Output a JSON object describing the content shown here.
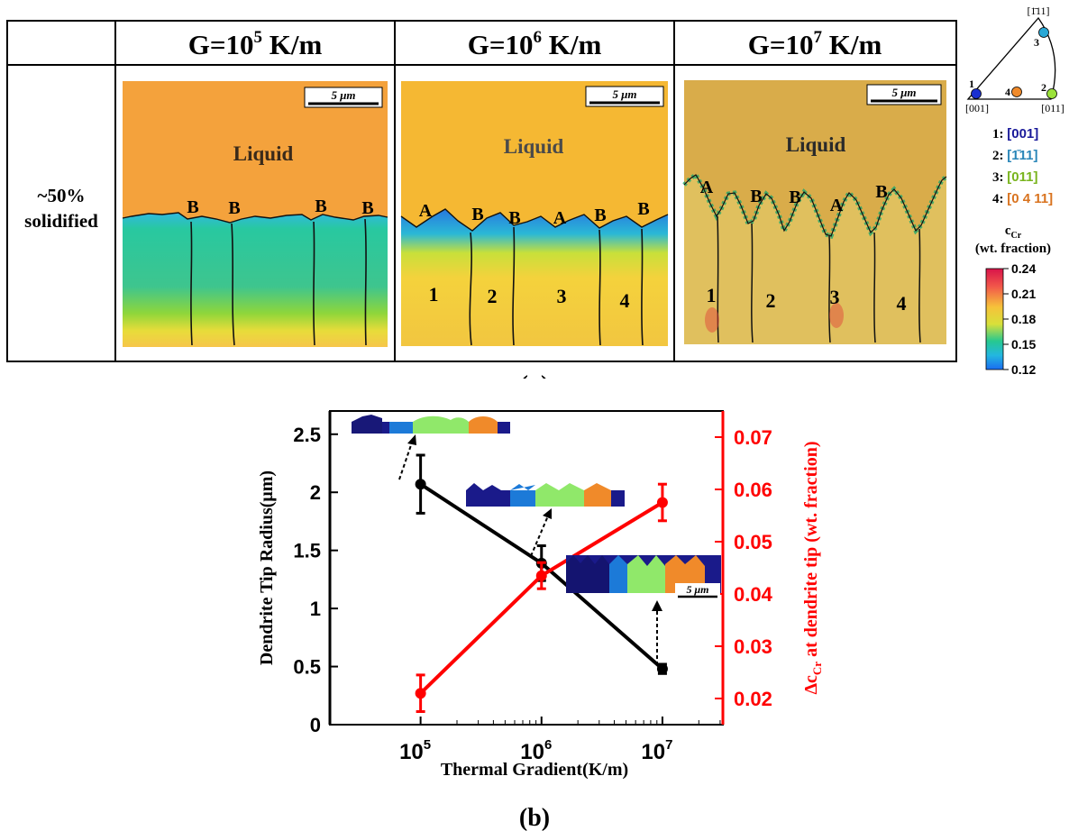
{
  "panel_a": {
    "label": "(a)",
    "columns": [
      {
        "prefix": "G=10",
        "exp": "5",
        "suffix": " K/m"
      },
      {
        "prefix": "G=10",
        "exp": "6",
        "suffix": " K/m"
      },
      {
        "prefix": "G=10",
        "exp": "7",
        "suffix": " K/m"
      }
    ],
    "row_label_line1": "~50%",
    "row_label_line2": "solidified",
    "scale_bar": "5 μm",
    "liquid_label": "Liquid",
    "tip_labels": [
      [
        "B",
        "B",
        "B",
        "B"
      ],
      [
        "A",
        "B",
        "B",
        "A",
        "B",
        "B"
      ],
      [
        "A",
        "B",
        "B",
        "A",
        "B"
      ]
    ],
    "grain_numbers": [
      [],
      [
        "1",
        "2",
        "3",
        "4"
      ],
      [
        "1",
        "2",
        "3",
        "4"
      ]
    ],
    "pole_figure": {
      "top": "[1̄11]",
      "bottom_left": "[001]",
      "bottom_right": "[011]",
      "point_numbers": [
        "1",
        "2",
        "3",
        "4"
      ],
      "colors": [
        "#1a2fd0",
        "#9be23a",
        "#29a8d6",
        "#f08a2a"
      ]
    },
    "orientation_legend": [
      {
        "num": "1:",
        "dir": "[001]",
        "color": "#1a1a9a"
      },
      {
        "num": "2:",
        "dir": "[1̄11]",
        "color": "#2a86b8"
      },
      {
        "num": "3:",
        "dir": "[011]",
        "color": "#79b41e"
      },
      {
        "num": "4:",
        "dir": "[0 4 11]",
        "color": "#d9731f"
      }
    ],
    "colorbar": {
      "title_main": "c",
      "title_sub": "Cr",
      "title_line2": "(wt. fraction)",
      "ticks": [
        "0.24",
        "0.21",
        "0.18",
        "0.15",
        "0.12"
      ]
    }
  },
  "panel_b": {
    "label": "(b)",
    "inset_scale": "5 μm"
  },
  "chart_data": {
    "type": "line",
    "x": [
      100000,
      1000000,
      10000000
    ],
    "x_tick_labels": [
      "10^5",
      "10^6",
      "10^7"
    ],
    "x_scale": "log",
    "xlabel": "Thermal Gradient(K/m)",
    "series": [
      {
        "axis": "left",
        "color": "#000000",
        "values": [
          2.07,
          1.39,
          0.48
        ],
        "errors": [
          0.25,
          0.15,
          0.04
        ]
      },
      {
        "axis": "right",
        "color": "#ff0000",
        "values": [
          0.021,
          0.0435,
          0.0575
        ],
        "errors": [
          0.0035,
          0.0025,
          0.0035
        ]
      }
    ],
    "ylabel_left": "Dendrite Tip Radius(μm)",
    "ylabel_right": "Δc",
    "ylabel_right_sub": "Cr",
    "ylabel_right_tail": " at dendrite tip (wt. fraction)",
    "ylim_left": [
      0,
      2.7
    ],
    "ylim_right": [
      0.015,
      0.075
    ],
    "yticks_left": [
      "0",
      "0.5",
      "1",
      "1.5",
      "2",
      "2.5"
    ],
    "yticks_right": [
      "0.02",
      "0.03",
      "0.04",
      "0.05",
      "0.06",
      "0.07"
    ],
    "grid": false,
    "legend": "none"
  }
}
